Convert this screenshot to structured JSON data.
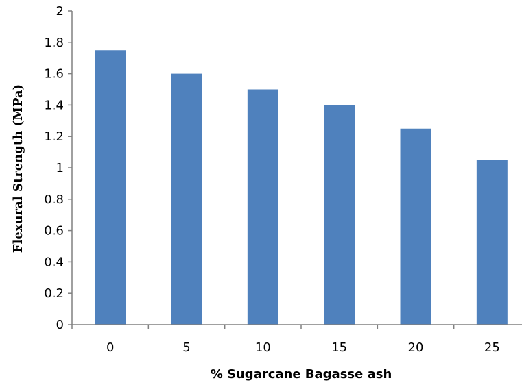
{
  "chart_data": {
    "type": "bar",
    "title": "",
    "xlabel": "% Sugarcane Bagasse ash",
    "ylabel": "Flexural Strength (MPa)",
    "categories": [
      "0",
      "5",
      "10",
      "15",
      "20",
      "25"
    ],
    "series": [
      {
        "values": [
          1.75,
          1.6,
          1.5,
          1.4,
          1.25,
          1.05
        ]
      }
    ],
    "ylim": [
      0,
      2
    ],
    "yticks": [
      "0",
      "0.2",
      "0.4",
      "0.6",
      "0.8",
      "1",
      "1.2",
      "1.4",
      "1.6",
      "1.8",
      "2"
    ],
    "grid": false,
    "legend": "none",
    "colors": {
      "bar": "#4f81bd",
      "axis": "#808080"
    }
  }
}
